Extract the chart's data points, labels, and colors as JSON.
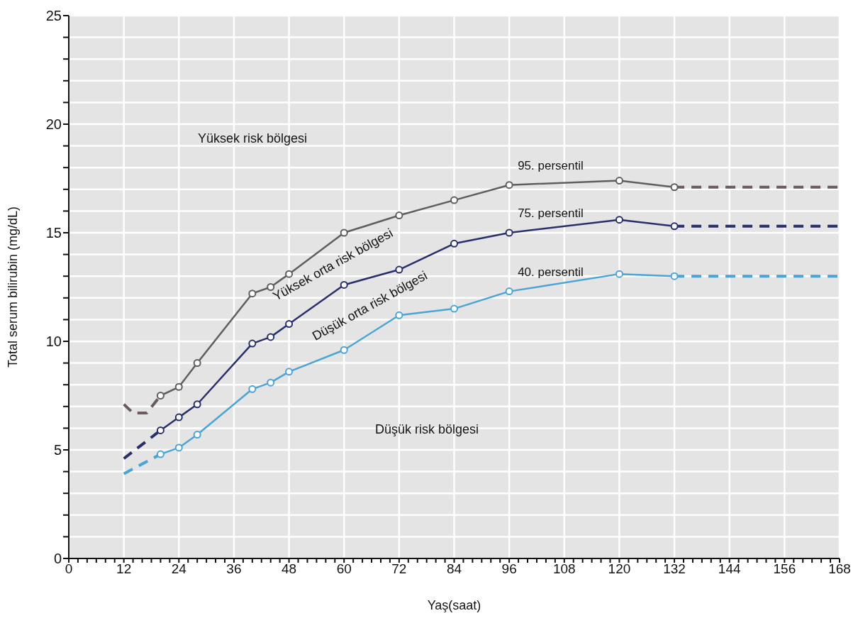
{
  "chart_data": {
    "type": "line",
    "xlabel": "Yaş(saat)",
    "ylabel": "Total serum bilirubin (mg/dL)",
    "xlim": [
      0,
      168
    ],
    "xticks": [
      0,
      {
        "value": 2,
        "label": null
      },
      {
        "value": 4,
        "label": null
      },
      {
        "value": 6,
        "label": null
      },
      {
        "value": 8,
        "label": null
      },
      {
        "value": 10,
        "label": null
      },
      12,
      {
        "value": 14,
        "label": null
      },
      {
        "value": 16,
        "label": null
      },
      {
        "value": 18,
        "label": null
      },
      {
        "value": 20,
        "label": null
      },
      {
        "value": 22,
        "label": null
      },
      24,
      {
        "value": 26,
        "label": null
      },
      {
        "value": 28,
        "label": null
      },
      {
        "value": 30,
        "label": null
      },
      {
        "value": 32,
        "label": null
      },
      {
        "value": 34,
        "label": null
      },
      36,
      {
        "value": 38,
        "label": null
      },
      {
        "value": 40,
        "label": null
      },
      {
        "value": 42,
        "label": null
      },
      {
        "value": 44,
        "label": null
      },
      {
        "value": 46,
        "label": null
      },
      48,
      {
        "value": 50,
        "label": null
      },
      {
        "value": 52,
        "label": null
      },
      {
        "value": 54,
        "label": null
      },
      {
        "value": 56,
        "label": null
      },
      {
        "value": 58,
        "label": null
      },
      60,
      {
        "value": 62,
        "label": null
      },
      {
        "value": 64,
        "label": null
      },
      {
        "value": 66,
        "label": null
      },
      {
        "value": 68,
        "label": null
      },
      {
        "value": 70,
        "label": null
      },
      72,
      {
        "value": 74,
        "label": null
      },
      {
        "value": 76,
        "label": null
      },
      {
        "value": 78,
        "label": null
      },
      {
        "value": 80,
        "label": null
      },
      {
        "value": 82,
        "label": null
      },
      84,
      {
        "value": 86,
        "label": null
      },
      {
        "value": 88,
        "label": null
      },
      {
        "value": 90,
        "label": null
      },
      {
        "value": 92,
        "label": null
      },
      {
        "value": 94,
        "label": null
      },
      96,
      {
        "value": 98,
        "label": null
      },
      {
        "value": 100,
        "label": null
      },
      {
        "value": 102,
        "label": null
      },
      {
        "value": 104,
        "label": null
      },
      {
        "value": 106,
        "label": null
      },
      108,
      {
        "value": 110,
        "label": null
      },
      {
        "value": 112,
        "label": null
      },
      {
        "value": 114,
        "label": null
      },
      {
        "value": 116,
        "label": null
      },
      {
        "value": 118,
        "label": null
      },
      120,
      {
        "value": 122,
        "label": null
      },
      {
        "value": 124,
        "label": null
      },
      {
        "value": 126,
        "label": null
      },
      {
        "value": 128,
        "label": null
      },
      {
        "value": 130,
        "label": null
      },
      132,
      {
        "value": 134,
        "label": null
      },
      {
        "value": 136,
        "label": null
      },
      {
        "value": 138,
        "label": null
      },
      {
        "value": 140,
        "label": null
      },
      {
        "value": 142,
        "label": null
      },
      144,
      {
        "value": 146,
        "label": null
      },
      {
        "value": 148,
        "label": null
      },
      {
        "value": 150,
        "label": null
      },
      {
        "value": 152,
        "label": null
      },
      {
        "value": 154,
        "label": null
      },
      156,
      {
        "value": 158,
        "label": null
      },
      {
        "value": 160,
        "label": null
      },
      {
        "value": 162,
        "label": null
      },
      {
        "value": 164,
        "label": null
      },
      {
        "value": 166,
        "label": null
      },
      168
    ],
    "ylim": [
      0,
      25
    ],
    "yticks": [
      0,
      {
        "value": 1,
        "label": null
      },
      {
        "value": 2,
        "label": null
      },
      {
        "value": 3,
        "label": null
      },
      {
        "value": 4,
        "label": null
      },
      5,
      {
        "value": 6,
        "label": null
      },
      {
        "value": 7,
        "label": null
      },
      {
        "value": 8,
        "label": null
      },
      {
        "value": 9,
        "label": null
      },
      10,
      {
        "value": 11,
        "label": null
      },
      {
        "value": 12,
        "label": null
      },
      {
        "value": 13,
        "label": null
      },
      {
        "value": 14,
        "label": null
      },
      15,
      {
        "value": 16,
        "label": null
      },
      {
        "value": 17,
        "label": null
      },
      {
        "value": 18,
        "label": null
      },
      {
        "value": 19,
        "label": null
      },
      20,
      {
        "value": 21,
        "label": null
      },
      {
        "value": 22,
        "label": null
      },
      {
        "value": 23,
        "label": null
      },
      {
        "value": 24,
        "label": null
      },
      25
    ],
    "grid": true,
    "marker": "circle",
    "line_style": "solid",
    "series": [
      {
        "name": "95. persentil",
        "color": "#5e5e5e",
        "x": [
          20,
          24,
          28,
          40,
          44,
          48,
          60,
          72,
          84,
          96,
          120,
          132
        ],
        "values": [
          7.5,
          7.9,
          9.0,
          12.2,
          12.5,
          13.1,
          15.0,
          15.8,
          16.5,
          17.2,
          17.4,
          17.1
        ]
      },
      {
        "color": "#6a5c5c",
        "line_style": "dashed",
        "marker": "none",
        "x": [
          12,
          14,
          17,
          20
        ],
        "values": [
          7.1,
          6.7,
          6.7,
          7.5
        ]
      },
      {
        "color": "#6a5c5c",
        "line_style": "dashed",
        "marker": "none",
        "x": [
          132,
          168
        ],
        "values": [
          17.1,
          17.1
        ]
      },
      {
        "name": "75. persentil",
        "color": "#27306a",
        "x": [
          20,
          24,
          28,
          40,
          44,
          48,
          60,
          72,
          84,
          96,
          120,
          132
        ],
        "values": [
          5.9,
          6.5,
          7.1,
          9.9,
          10.2,
          10.8,
          12.6,
          13.3,
          14.5,
          15.0,
          15.6,
          15.3
        ]
      },
      {
        "color": "#27306a",
        "line_style": "dashed",
        "marker": "none",
        "x": [
          12,
          20
        ],
        "values": [
          4.6,
          5.9
        ]
      },
      {
        "color": "#27306a",
        "line_style": "dashed",
        "marker": "none",
        "x": [
          132,
          168
        ],
        "values": [
          15.3,
          15.3
        ]
      },
      {
        "name": "40. persentil",
        "color": "#4ba4d4",
        "x": [
          20,
          24,
          28,
          40,
          44,
          48,
          60,
          72,
          84,
          96,
          120,
          132
        ],
        "values": [
          4.8,
          5.1,
          5.7,
          7.8,
          8.1,
          8.6,
          9.6,
          11.2,
          11.5,
          12.3,
          13.1,
          13.0
        ]
      },
      {
        "color": "#4ba4d4",
        "line_style": "dashed",
        "marker": "none",
        "x": [
          12,
          20
        ],
        "values": [
          3.9,
          4.8
        ]
      },
      {
        "color": "#4ba4d4",
        "line_style": "dashed",
        "marker": "none",
        "x": [
          132,
          168
        ],
        "values": [
          13.0,
          13.0
        ]
      }
    ],
    "annotations": [
      "Yüksek risk bölgesi",
      "Yüksek orta risk bölgesi",
      "Düşük orta risk bölgesi",
      "Düşük risk bölgesi"
    ]
  }
}
